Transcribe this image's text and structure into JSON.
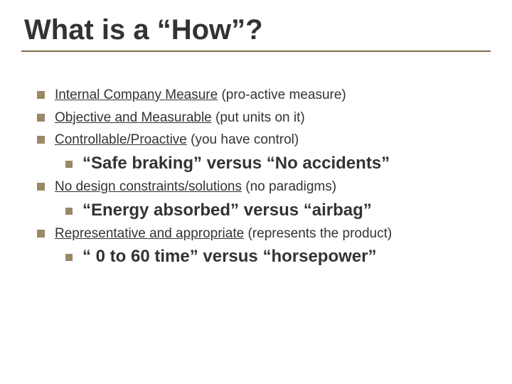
{
  "title": "What is a “How”?",
  "colors": {
    "text": "#333333",
    "underline": "#806a4a",
    "bullet": "#9a8866",
    "background": "#ffffff"
  },
  "typography": {
    "title_fontsize": 40,
    "l1_fontsize": 19,
    "l2_fontsize": 24,
    "font_family": "Comic Sans MS"
  },
  "items": {
    "l1_1": {
      "u": "Internal Company Measure",
      "rest": " (pro-active measure)"
    },
    "l1_2": {
      "u": "Objective and Measurable",
      "rest": " (put units on it)"
    },
    "l1_3": {
      "u": "Controllable/Proactive",
      "rest": " (you have control)"
    },
    "l2_1": "“Safe braking” versus “No accidents”",
    "l1_4": {
      "u": "No design constraints/solutions",
      "rest": " (no paradigms)"
    },
    "l2_2": "“Energy absorbed” versus “airbag”",
    "l1_5": {
      "u": "Representative and appropriate",
      "rest": " (represents the product)"
    },
    "l2_3": "“ 0 to 60 time” versus “horsepower”"
  }
}
